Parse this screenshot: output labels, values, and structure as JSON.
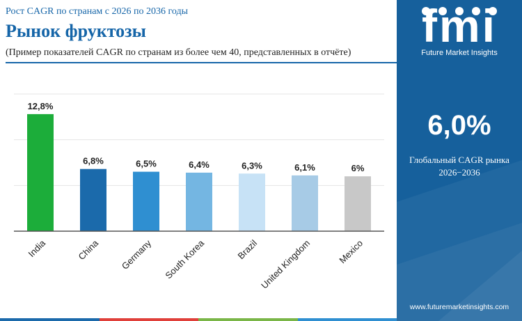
{
  "header": {
    "subtitle": "Рост CAGR по странам с 2026 по 2036 годы",
    "title": "Рынок фруктозы",
    "note": "(Пример показателей CAGR по странам из более чем 40, представленных в отчёте)"
  },
  "sidebar": {
    "logo_text": "fmi",
    "logo_subtitle": "Future Market Insights",
    "global_value": "6,0%",
    "global_label_line1": "Глобальный CAGR рынка",
    "global_label_line2": "2026−2036",
    "url": "www.futuremarketinsights.com",
    "background_color": "#16609c"
  },
  "chart_data": {
    "type": "bar",
    "categories": [
      "India",
      "China",
      "Germany",
      "South Korea",
      "Brazil",
      "United Kingdom",
      "Mexico"
    ],
    "values": [
      12.8,
      6.8,
      6.5,
      6.4,
      6.3,
      6.1,
      6.0
    ],
    "data_labels": [
      "12,8%",
      "6,8%",
      "6,5%",
      "6,4%",
      "6,3%",
      "6,1%",
      "6%"
    ],
    "colors": [
      "#1cad3a",
      "#1b6aab",
      "#2f8fd1",
      "#74b6e2",
      "#c7e2f6",
      "#a7cbe6",
      "#c8c8c8"
    ],
    "ylim": [
      0,
      15
    ],
    "grid": true,
    "title": "",
    "xlabel": "",
    "ylabel": ""
  },
  "footer_colors": [
    "#1b6aab",
    "#e0403a",
    "#7ab648",
    "#2f8fd1"
  ]
}
